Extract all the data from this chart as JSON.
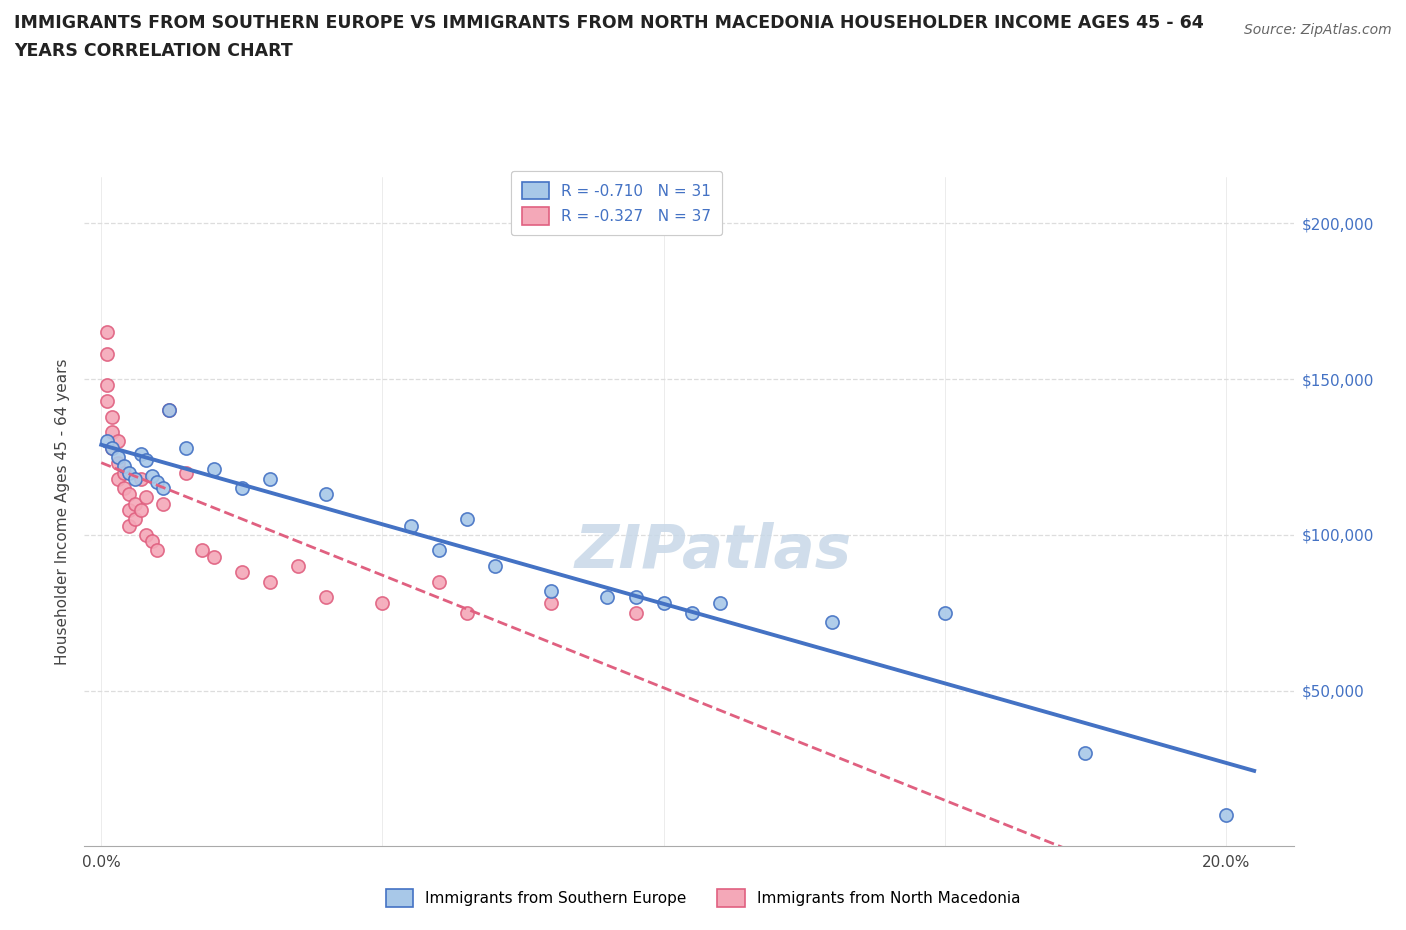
{
  "title_line1": "IMMIGRANTS FROM SOUTHERN EUROPE VS IMMIGRANTS FROM NORTH MACEDONIA HOUSEHOLDER INCOME AGES 45 - 64",
  "title_line2": "YEARS CORRELATION CHART",
  "source": "Source: ZipAtlas.com",
  "ylabel": "Householder Income Ages 45 - 64 years",
  "legend_bottom": [
    "Immigrants from Southern Europe",
    "Immigrants from North Macedonia"
  ],
  "series1_label": "R = -0.710   N = 31",
  "series2_label": "R = -0.327   N = 37",
  "series1_color": "#a8c8e8",
  "series2_color": "#f4a8b8",
  "line1_color": "#4472c4",
  "line2_color": "#e06080",
  "watermark_text": "ZIPatlas",
  "watermark_color": "#c8d8e8",
  "series1_x": [
    0.001,
    0.002,
    0.003,
    0.004,
    0.005,
    0.006,
    0.007,
    0.008,
    0.009,
    0.01,
    0.011,
    0.012,
    0.015,
    0.02,
    0.025,
    0.03,
    0.04,
    0.055,
    0.06,
    0.065,
    0.07,
    0.08,
    0.09,
    0.095,
    0.1,
    0.105,
    0.11,
    0.13,
    0.15,
    0.175,
    0.2
  ],
  "series1_y": [
    130000,
    128000,
    125000,
    122000,
    120000,
    118000,
    126000,
    124000,
    119000,
    117000,
    115000,
    140000,
    128000,
    121000,
    115000,
    118000,
    113000,
    103000,
    95000,
    105000,
    90000,
    82000,
    80000,
    80000,
    78000,
    75000,
    78000,
    72000,
    75000,
    30000,
    10000
  ],
  "series2_x": [
    0.001,
    0.001,
    0.001,
    0.001,
    0.002,
    0.002,
    0.002,
    0.003,
    0.003,
    0.003,
    0.004,
    0.004,
    0.005,
    0.005,
    0.005,
    0.006,
    0.006,
    0.007,
    0.007,
    0.008,
    0.008,
    0.009,
    0.01,
    0.011,
    0.012,
    0.015,
    0.018,
    0.02,
    0.025,
    0.03,
    0.035,
    0.04,
    0.05,
    0.06,
    0.065,
    0.08,
    0.095
  ],
  "series2_y": [
    165000,
    158000,
    148000,
    143000,
    138000,
    133000,
    128000,
    123000,
    118000,
    130000,
    115000,
    120000,
    113000,
    108000,
    103000,
    110000,
    105000,
    118000,
    108000,
    112000,
    100000,
    98000,
    95000,
    110000,
    140000,
    120000,
    95000,
    93000,
    88000,
    85000,
    90000,
    80000,
    78000,
    85000,
    75000,
    78000,
    75000
  ],
  "xlim_min": -0.003,
  "xlim_max": 0.212,
  "ylim_min": 0,
  "ylim_max": 215000,
  "ytick_vals": [
    50000,
    100000,
    150000,
    200000
  ],
  "ytick_labels": [
    "$50,000",
    "$100,000",
    "$150,000",
    "$200,000"
  ],
  "xtick_vals": [
    0.0,
    0.05,
    0.1,
    0.15,
    0.2
  ],
  "xtick_labels": [
    "0.0%",
    "",
    "",
    "",
    "20.0%"
  ],
  "grid_color": "#dddddd",
  "tick_color": "#4472c4",
  "background_color": "#ffffff"
}
